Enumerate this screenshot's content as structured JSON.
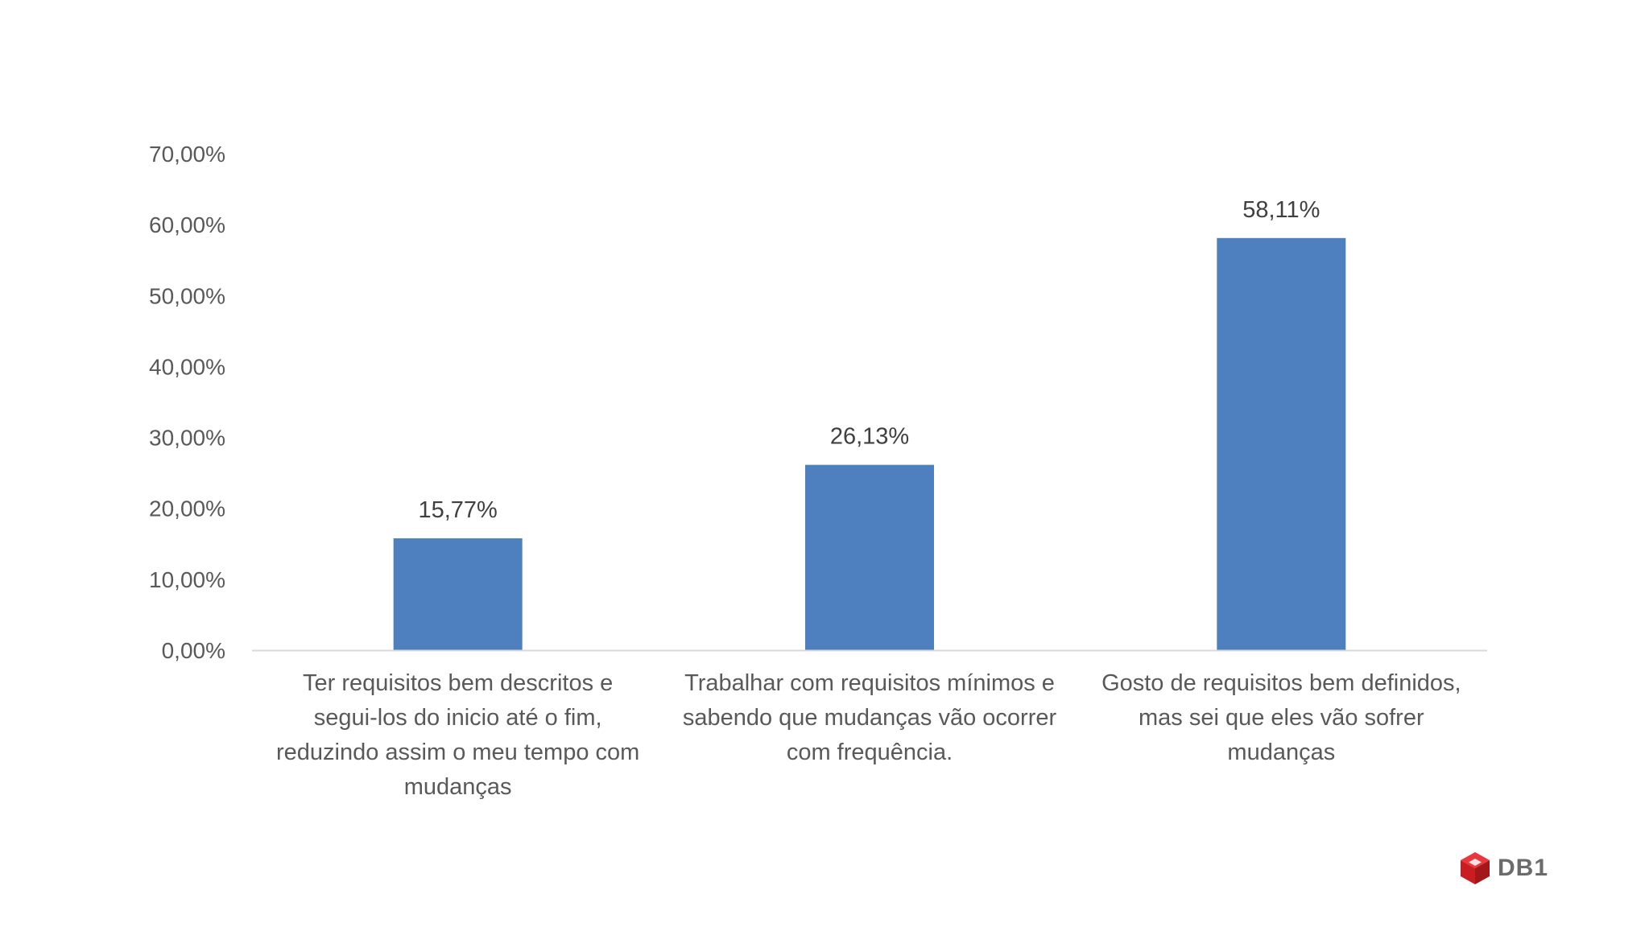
{
  "colors": {
    "bar": "#4e80bf",
    "axis": "#d9d9d9",
    "text": "#595959",
    "logo_red": "#d9262b"
  },
  "chart_data": {
    "type": "bar",
    "categories": [
      "Ter requisitos bem descritos e segui-los do inicio até o fim, reduzindo assim o meu tempo com mudanças",
      "Trabalhar com requisitos mínimos e sabendo que mudanças vão ocorrer com frequência.",
      "Gosto de requisitos bem definidos, mas sei que eles vão sofrer mudanças"
    ],
    "category_lines": [
      [
        "Ter requisitos bem descritos e",
        "segui-los do inicio até o fim,",
        "reduzindo assim o meu tempo com",
        "mudanças"
      ],
      [
        "Trabalhar com requisitos mínimos e",
        "sabendo que mudanças vão ocorrer",
        "com frequência."
      ],
      [
        "Gosto de requisitos bem definidos,",
        "mas sei que eles vão sofrer",
        "mudanças"
      ]
    ],
    "values": [
      15.77,
      26.13,
      58.11
    ],
    "data_labels": [
      "15,77%",
      "26,13%",
      "58,11%"
    ],
    "ylim": [
      0,
      70
    ],
    "yticks": [
      0,
      10,
      20,
      30,
      40,
      50,
      60,
      70
    ],
    "ytick_labels": [
      "0,00%",
      "10,00%",
      "20,00%",
      "30,00%",
      "40,00%",
      "50,00%",
      "60,00%",
      "70,00%"
    ],
    "grid": false,
    "title": "",
    "xlabel": "",
    "ylabel": ""
  },
  "logo": {
    "text": "DB1",
    "icon": "cube-logo-icon"
  }
}
